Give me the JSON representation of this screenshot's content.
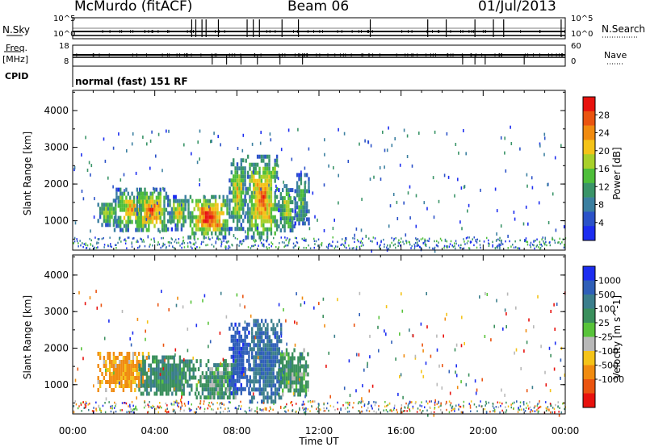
{
  "header": {
    "station": "McMurdo (fitACF)",
    "beam": "Beam 06",
    "date": "01/Jul/2013"
  },
  "top_panels": {
    "nsky_label": "N.Sky",
    "nsearch_label": "N.Search",
    "nsky_ticks": [
      "10^5",
      "10^0"
    ],
    "nsearch_ticks": [
      "10^5",
      "10^0"
    ],
    "freq_label": "Freq.",
    "freq_unit": "[MHz]",
    "freq_ticks": [
      "18",
      "8"
    ],
    "nave_label": "Nave",
    "nave_ticks": [
      "60",
      "0"
    ],
    "cpid_label": "CPID",
    "cpid_text": "normal (fast) 151 RF"
  },
  "colors": {
    "power_scale": [
      "#1c2df0",
      "#2b52c8",
      "#3b7fa0",
      "#3a9468",
      "#4ebe3a",
      "#a8d02a",
      "#f4c318",
      "#f08b10",
      "#ea5410",
      "#e8120e"
    ],
    "velocity_scale": [
      "#1c2df0",
      "#2f5fb8",
      "#3b7e8c",
      "#3a8f5c",
      "#58c33a",
      "#b8b8b8",
      "#f4c318",
      "#f08b10",
      "#ea5410",
      "#e8120e"
    ]
  },
  "chart_data": [
    {
      "type": "heatmap",
      "panel": "power",
      "ylabel": "Slant Range [km]",
      "xlim": [
        0,
        24
      ],
      "ylim": [
        200,
        4550
      ],
      "yticks": [
        1000,
        2000,
        3000,
        4000
      ],
      "colorbar_label": "Power [dB]",
      "colorbar_range": [
        0,
        32
      ],
      "colorbar_ticks": [
        "4",
        "8",
        "12",
        "16",
        "20",
        "24",
        "28"
      ],
      "echo_regions": [
        {
          "t0": 1.2,
          "t1": 2.2,
          "r0": 900,
          "r1": 1600,
          "level": 16
        },
        {
          "t0": 2.0,
          "t1": 3.6,
          "r0": 800,
          "r1": 1900,
          "level": 20
        },
        {
          "t0": 3.0,
          "t1": 4.6,
          "r0": 700,
          "r1": 1900,
          "level": 22
        },
        {
          "t0": 4.6,
          "t1": 5.6,
          "r0": 800,
          "r1": 1700,
          "level": 18
        },
        {
          "t0": 5.6,
          "t1": 7.6,
          "r0": 600,
          "r1": 1700,
          "level": 26
        },
        {
          "t0": 7.6,
          "t1": 8.4,
          "r0": 800,
          "r1": 2700,
          "level": 18
        },
        {
          "t0": 8.4,
          "t1": 10.0,
          "r0": 500,
          "r1": 2800,
          "level": 22
        },
        {
          "t0": 10.0,
          "t1": 10.8,
          "r0": 700,
          "r1": 2000,
          "level": 16
        },
        {
          "t0": 10.8,
          "t1": 11.5,
          "r0": 900,
          "r1": 2300,
          "level": 12
        }
      ]
    },
    {
      "type": "heatmap",
      "panel": "velocity",
      "xlabel": "Time UT",
      "ylabel": "Slant Range [km]",
      "xlim": [
        0,
        24
      ],
      "ylim": [
        200,
        4550
      ],
      "xticks": [
        "00:00",
        "04:00",
        "08:00",
        "12:00",
        "16:00",
        "20:00",
        "00:00"
      ],
      "yticks": [
        1000,
        2000,
        3000,
        4000
      ],
      "colorbar_label": "Velocity [m s^-1]",
      "colorbar_ticks": [
        "1000",
        "500",
        "100",
        "25",
        "-25",
        "-100",
        "-500",
        "-1000"
      ],
      "echo_regions": [
        {
          "t0": 1.2,
          "t1": 3.7,
          "r0": 900,
          "r1": 1900,
          "velocity": -150
        },
        {
          "t0": 3.2,
          "t1": 6.0,
          "r0": 700,
          "r1": 1800,
          "velocity": 200
        },
        {
          "t0": 6.0,
          "t1": 8.0,
          "r0": 600,
          "r1": 1700,
          "velocity": 150
        },
        {
          "t0": 7.6,
          "t1": 8.6,
          "r0": 800,
          "r1": 2700,
          "velocity": 600
        },
        {
          "t0": 8.6,
          "t1": 10.2,
          "r0": 500,
          "r1": 2800,
          "velocity": 400
        },
        {
          "t0": 10.0,
          "t1": 11.5,
          "r0": 700,
          "r1": 2000,
          "velocity": 150
        }
      ]
    }
  ]
}
